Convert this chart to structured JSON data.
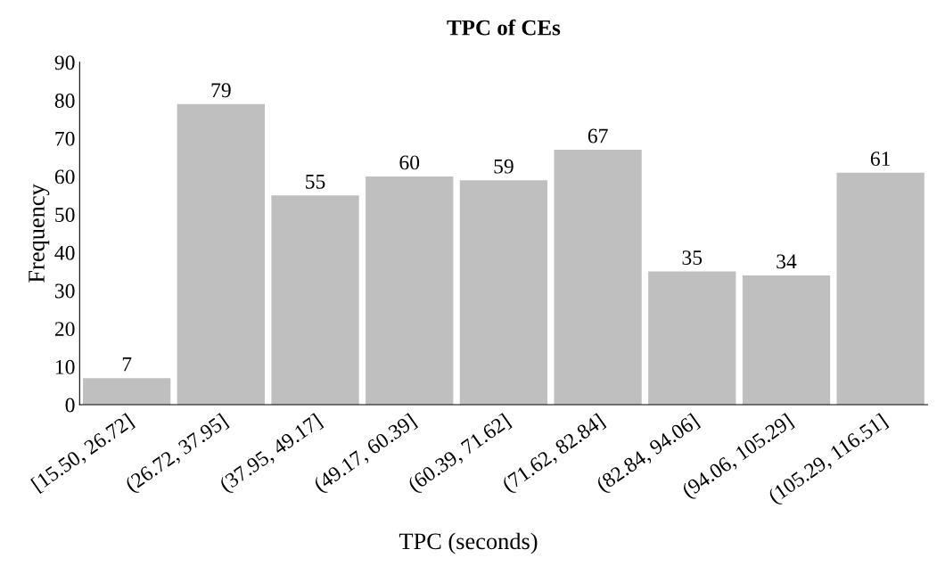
{
  "chart_data": {
    "type": "bar",
    "title": "TPC of CEs",
    "xlabel": "TPC (seconds)",
    "ylabel": "Frequency",
    "categories": [
      "[15.50, 26.72]",
      "(26.72, 37.95]",
      "(37.95, 49.17]",
      "(49.17, 60.39]",
      "(60.39, 71.62]",
      "(71.62, 82.84]",
      "(82.84, 94.06]",
      "(94.06, 105.29]",
      "(105.29, 116.51]"
    ],
    "values": [
      7,
      79,
      55,
      60,
      59,
      67,
      35,
      34,
      61
    ],
    "color": "#bfbfbf",
    "ylim": [
      0,
      90
    ],
    "yticks": [
      0,
      10,
      20,
      30,
      40,
      50,
      60,
      70,
      80,
      90
    ],
    "data_labels": true,
    "grid": false,
    "legend": false
  }
}
